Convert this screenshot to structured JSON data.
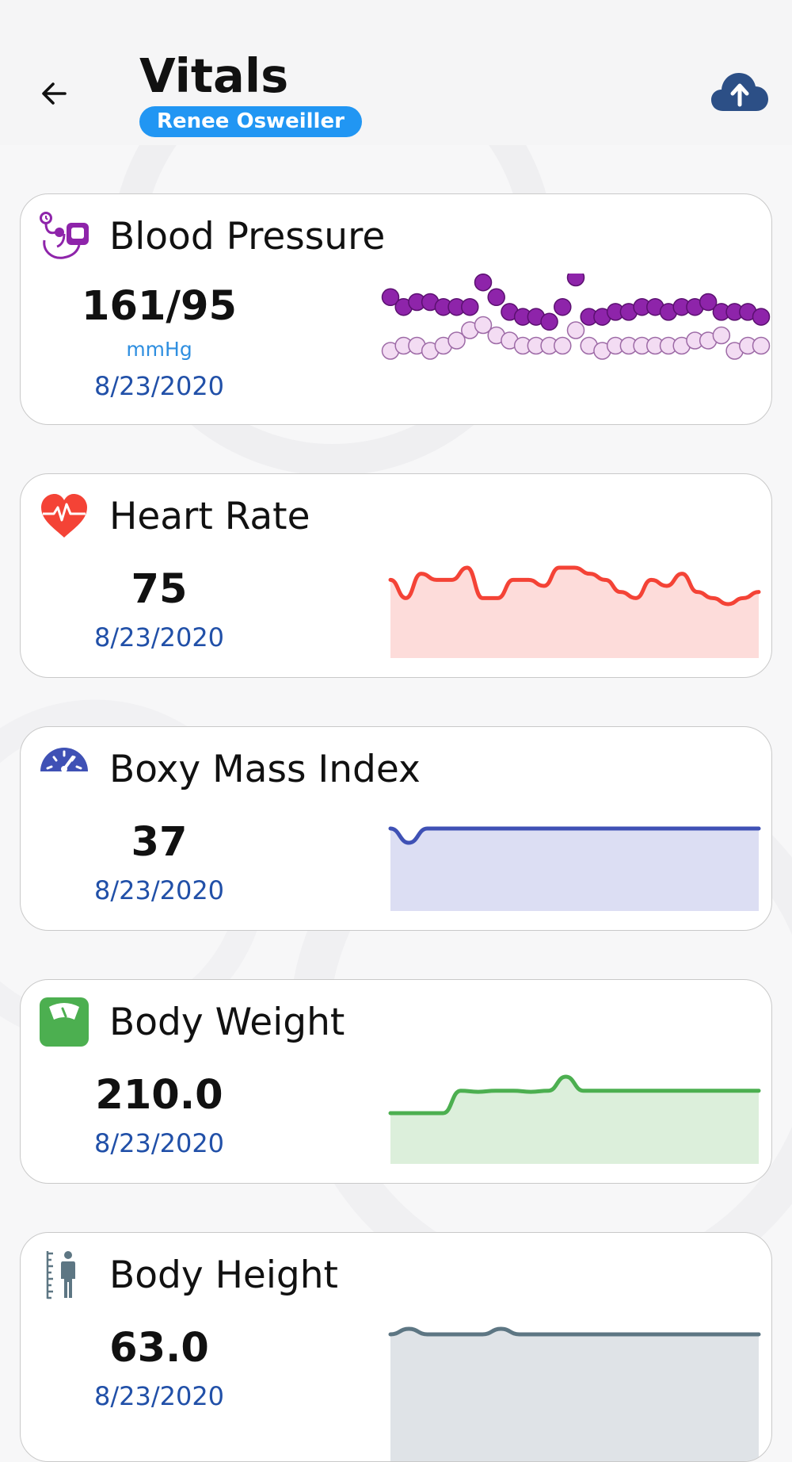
{
  "header": {
    "title": "Vitals",
    "patient_name": "Renee Osweiller",
    "back_icon": "arrow-left-icon",
    "upload_icon": "cloud-upload-icon",
    "upload_color": "#2c4f86"
  },
  "cards": [
    {
      "id": "blood-pressure",
      "title": "Blood Pressure",
      "value": "161/95",
      "unit": "mmHg",
      "date": "8/23/2020",
      "icon": "sphygmomanometer-icon",
      "color": "#8e24aa",
      "chart_data": {
        "type": "scatter",
        "series": [
          {
            "values": [
              161,
              159,
              160,
              160,
              159,
              159,
              159,
              164,
              161,
              158,
              157,
              157,
              156,
              159,
              165,
              157,
              157,
              158,
              158,
              159,
              159,
              158,
              159,
              159,
              160,
              158,
              158,
              158,
              157
            ]
          },
          {
            "values": [
              95,
              96,
              96,
              95,
              96,
              97,
              99,
              100,
              98,
              97,
              96,
              96,
              96,
              96,
              99,
              96,
              95,
              96,
              96,
              96,
              96,
              96,
              96,
              97,
              97,
              98,
              95,
              96,
              96
            ]
          }
        ]
      }
    },
    {
      "id": "heart-rate",
      "title": "Heart Rate",
      "value": "75",
      "date": "8/23/2020",
      "icon": "heart-pulse-icon",
      "color": "#f44336",
      "fill": "#fddcda",
      "chart_data": {
        "type": "area",
        "values": [
          76,
          73,
          77,
          76,
          76,
          78,
          73,
          73,
          76,
          76,
          75,
          78,
          78,
          77,
          76,
          74,
          73,
          76,
          75,
          77,
          74,
          73,
          72,
          73,
          74
        ]
      }
    },
    {
      "id": "bmi",
      "title": "Boxy Mass Index",
      "value": "37",
      "date": "8/23/2020",
      "icon": "bmi-gauge-icon",
      "color": "#3f51b5",
      "fill": "#dcdef3",
      "chart_data": {
        "type": "area",
        "values": [
          37,
          36.6,
          37,
          37,
          37,
          37,
          37,
          37,
          37,
          37,
          37,
          37,
          37,
          37,
          37,
          37,
          37,
          37,
          37,
          37,
          37
        ]
      }
    },
    {
      "id": "body-weight",
      "title": "Body Weight",
      "value": "210.0",
      "date": "8/23/2020",
      "icon": "weight-scale-icon",
      "color": "#4caf50",
      "fill": "#dcefdb",
      "chart_data": {
        "type": "area",
        "values": [
          206,
          206,
          206,
          206,
          210,
          209.8,
          210,
          210,
          209.8,
          210,
          212.5,
          210,
          210,
          210,
          210,
          210,
          210,
          210,
          210,
          210,
          210,
          210
        ]
      }
    },
    {
      "id": "body-height",
      "title": "Body Height",
      "value": "63.0",
      "date": "8/23/2020",
      "icon": "person-height-icon",
      "color": "#5d7683",
      "fill": "#dfe3e7",
      "chart_data": {
        "type": "area",
        "values": [
          63,
          63.3,
          63,
          63,
          63,
          63,
          63.3,
          63,
          63,
          63,
          63,
          63,
          63,
          63,
          63,
          63,
          63,
          63,
          63,
          63,
          63
        ]
      }
    }
  ]
}
